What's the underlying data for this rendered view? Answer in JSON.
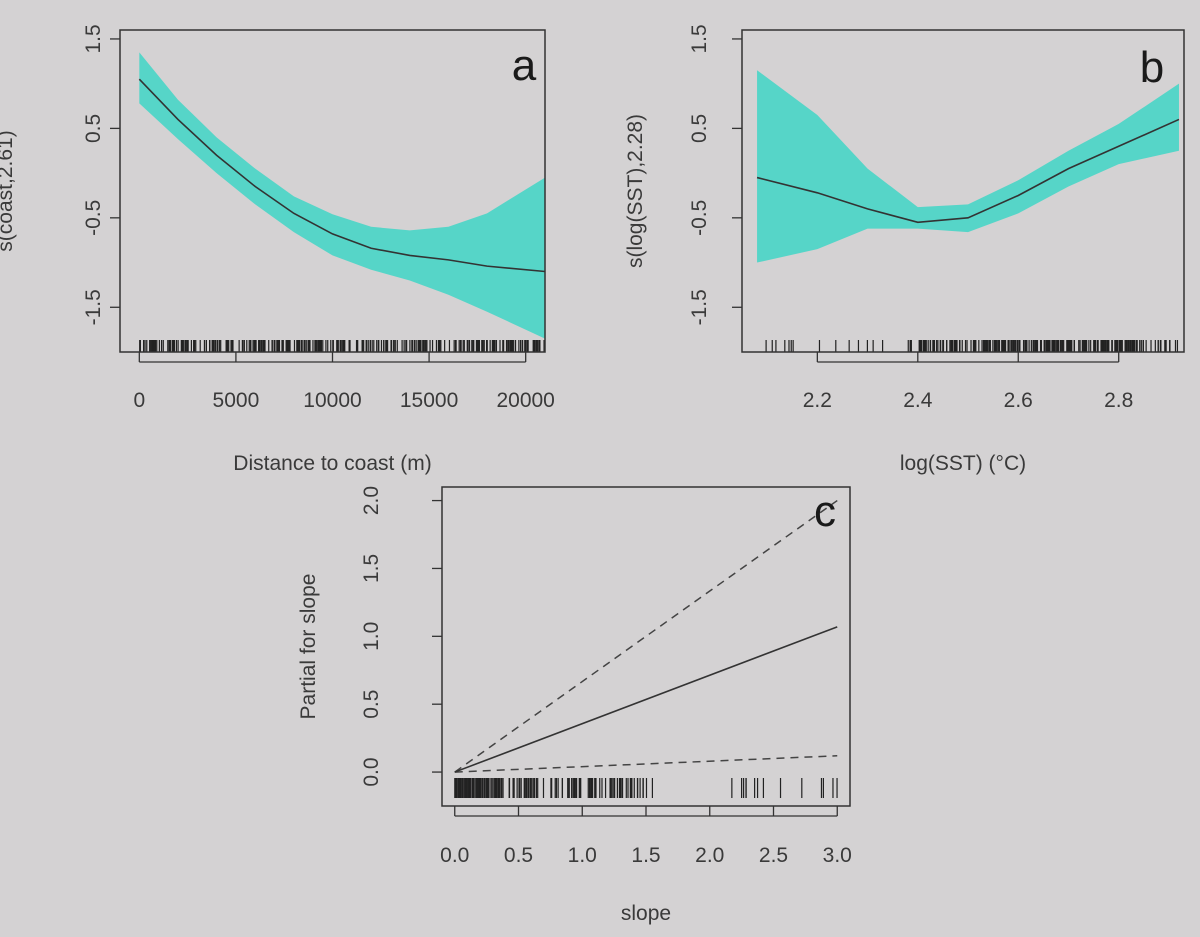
{
  "chart_data": [
    {
      "panel": "a",
      "type": "line",
      "ylabel": "s(coast,2.61)",
      "xlabel": "Distance to coast (m)",
      "xlim": [
        -1000,
        21000
      ],
      "ylim": [
        -2.0,
        1.6
      ],
      "xticks": [
        0,
        5000,
        10000,
        15000,
        20000
      ],
      "xtick_labels": [
        "0",
        "5000",
        "10000",
        "15000",
        "20000"
      ],
      "yticks": [
        1.5,
        0.5,
        -0.5,
        -1.5
      ],
      "ytick_labels": [
        "1.5",
        "0.5",
        "-0.5",
        "-1.5"
      ],
      "x": [
        0,
        2000,
        4000,
        6000,
        8000,
        10000,
        12000,
        14000,
        16000,
        18000,
        21000
      ],
      "fit": [
        1.05,
        0.6,
        0.2,
        -0.15,
        -0.45,
        -0.68,
        -0.84,
        -0.92,
        -0.97,
        -1.04,
        -1.1
      ],
      "upper": [
        1.35,
        0.82,
        0.4,
        0.05,
        -0.26,
        -0.46,
        -0.6,
        -0.64,
        -0.6,
        -0.45,
        -0.05
      ],
      "lower": [
        0.78,
        0.38,
        0.0,
        -0.35,
        -0.66,
        -0.92,
        -1.08,
        -1.2,
        -1.36,
        -1.55,
        -1.85
      ],
      "band_color": "#3fd6c6",
      "rug": "dense continuous rug along x-axis"
    },
    {
      "panel": "b",
      "type": "line",
      "ylabel": "s(log(SST),2.28)",
      "xlabel": "log(SST) (°C)",
      "xlim": [
        2.05,
        2.93
      ],
      "ylim": [
        -2.0,
        1.6
      ],
      "xticks": [
        2.2,
        2.4,
        2.6,
        2.8
      ],
      "xtick_labels": [
        "2.2",
        "2.4",
        "2.6",
        "2.8"
      ],
      "yticks": [
        1.5,
        0.5,
        -0.5,
        -1.5
      ],
      "ytick_labels": [
        "1.5",
        "0.5",
        "-0.5",
        "-1.5"
      ],
      "x": [
        2.08,
        2.2,
        2.3,
        2.4,
        2.5,
        2.6,
        2.7,
        2.8,
        2.92
      ],
      "fit": [
        -0.05,
        -0.22,
        -0.4,
        -0.55,
        -0.5,
        -0.25,
        0.05,
        0.3,
        0.6
      ],
      "upper": [
        1.15,
        0.65,
        0.05,
        -0.38,
        -0.35,
        -0.08,
        0.25,
        0.55,
        1.0
      ],
      "lower": [
        -1.0,
        -0.85,
        -0.62,
        -0.62,
        -0.66,
        -0.45,
        -0.15,
        0.1,
        0.25
      ],
      "band_color": "#3fd6c6",
      "rug": "sparse at low values, dense above 2.4"
    },
    {
      "panel": "c",
      "type": "line",
      "ylabel": "Partial for slope",
      "xlabel": "slope",
      "xlim": [
        -0.1,
        3.1
      ],
      "ylim": [
        -0.25,
        2.1
      ],
      "xticks": [
        0.0,
        0.5,
        1.0,
        1.5,
        2.0,
        2.5,
        3.0
      ],
      "xtick_labels": [
        "0.0",
        "0.5",
        "1.0",
        "1.5",
        "2.0",
        "2.5",
        "3.0"
      ],
      "yticks": [
        0.0,
        0.5,
        1.0,
        1.5,
        2.0
      ],
      "ytick_labels": [
        "0.0",
        "0.5",
        "1.0",
        "1.5",
        "2.0"
      ],
      "x": [
        0.0,
        3.0
      ],
      "fit": [
        0.0,
        1.07
      ],
      "upper": [
        0.0,
        2.0
      ],
      "lower": [
        0.0,
        0.12
      ],
      "rug": "dense 0–1.5, sparse to 3.0"
    }
  ],
  "panel_letters": {
    "a": "a",
    "b": "b",
    "c": "c"
  }
}
